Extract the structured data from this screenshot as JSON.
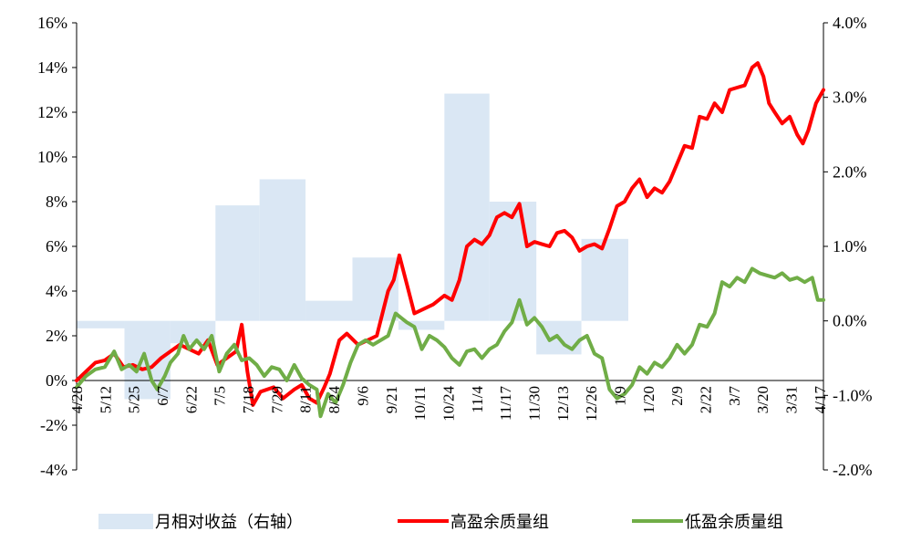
{
  "chart_data": {
    "type": "line",
    "title": "",
    "x_labels": [
      "4/28",
      "5/12",
      "5/25",
      "6/7",
      "6/22",
      "7/5",
      "7/18",
      "7/29",
      "8/11",
      "8/24",
      "9/6",
      "9/21",
      "10/11",
      "10/24",
      "11/4",
      "11/17",
      "11/30",
      "12/13",
      "12/26",
      "1/9",
      "1/20",
      "2/9",
      "2/22",
      "3/7",
      "3/20",
      "3/31",
      "4/17"
    ],
    "y_left": {
      "min": -4,
      "max": 16,
      "step": 2,
      "tick_labels": [
        "-4%",
        "-2%",
        "0%",
        "2%",
        "4%",
        "6%",
        "8%",
        "10%",
        "12%",
        "14%",
        "16%"
      ]
    },
    "y_right": {
      "min": -2.0,
      "max": 4.0,
      "step": 1.0,
      "tick_labels": [
        "-2.0%",
        "-1.0%",
        "0.0%",
        "1.0%",
        "2.0%",
        "3.0%",
        "4.0%"
      ]
    },
    "grid": false,
    "legend_position": "bottom",
    "series": [
      {
        "name": "月相对收益（右轴）",
        "axis": "right",
        "kind": "bar",
        "color": "#dae7f4",
        "months": [
          {
            "start": 0,
            "end": 2.55,
            "value": -0.1
          },
          {
            "start": 2.55,
            "end": 5.0,
            "value": -1.05
          },
          {
            "start": 5.0,
            "end": 7.4,
            "value": -0.3
          },
          {
            "start": 7.4,
            "end": 9.75,
            "value": 1.55
          },
          {
            "start": 9.75,
            "end": 12.2,
            "value": 1.9
          },
          {
            "start": 12.2,
            "end": 14.7,
            "value": 0.27
          },
          {
            "start": 14.7,
            "end": 17.15,
            "value": 0.85
          },
          {
            "start": 17.15,
            "end": 19.6,
            "value": -0.12
          },
          {
            "start": 19.6,
            "end": 22.0,
            "value": 3.05
          },
          {
            "start": 22.0,
            "end": 24.5,
            "value": 1.6
          },
          {
            "start": 24.5,
            "end": 26.9,
            "value": -0.45
          },
          {
            "start": 26.9,
            "end": 29.4,
            "value": 1.1
          }
        ]
      },
      {
        "name": "高盈余质量组",
        "axis": "left",
        "kind": "line",
        "color": "#ff0000",
        "points": [
          [
            0,
            0
          ],
          [
            0.5,
            0.4
          ],
          [
            1,
            0.8
          ],
          [
            1.5,
            0.9
          ],
          [
            2,
            1.2
          ],
          [
            2.5,
            0.6
          ],
          [
            3,
            0.7
          ],
          [
            3.5,
            0.5
          ],
          [
            4,
            0.6
          ],
          [
            4.5,
            1.0
          ],
          [
            5,
            1.3
          ],
          [
            5.5,
            1.6
          ],
          [
            6,
            1.4
          ],
          [
            6.5,
            1.2
          ],
          [
            7,
            1.8
          ],
          [
            7.5,
            0.7
          ],
          [
            8,
            1.0
          ],
          [
            8.5,
            1.3
          ],
          [
            8.8,
            2.5
          ],
          [
            9.1,
            0.4
          ],
          [
            9.4,
            -1.1
          ],
          [
            9.8,
            -0.5
          ],
          [
            10.5,
            -0.3
          ],
          [
            11,
            -0.8
          ],
          [
            11.6,
            -0.4
          ],
          [
            12,
            -0.2
          ],
          [
            12.4,
            -0.8
          ],
          [
            12.8,
            -1.0
          ],
          [
            13.2,
            -0.3
          ],
          [
            13.5,
            0.3
          ],
          [
            14,
            1.8
          ],
          [
            14.4,
            2.1
          ],
          [
            15,
            1.6
          ],
          [
            15.5,
            1.8
          ],
          [
            16,
            2.0
          ],
          [
            16.3,
            3.0
          ],
          [
            16.6,
            4.0
          ],
          [
            16.9,
            4.5
          ],
          [
            17.2,
            5.6
          ],
          [
            17.6,
            4.3
          ],
          [
            18,
            3.0
          ],
          [
            18.5,
            3.2
          ],
          [
            19,
            3.4
          ],
          [
            19.6,
            3.8
          ],
          [
            20,
            3.6
          ],
          [
            20.4,
            4.5
          ],
          [
            20.8,
            6.0
          ],
          [
            21.2,
            6.3
          ],
          [
            21.6,
            6.1
          ],
          [
            22,
            6.5
          ],
          [
            22.4,
            7.3
          ],
          [
            22.8,
            7.5
          ],
          [
            23.2,
            7.3
          ],
          [
            23.6,
            7.9
          ],
          [
            24,
            6.0
          ],
          [
            24.4,
            6.2
          ],
          [
            24.8,
            6.1
          ],
          [
            25.2,
            6.0
          ],
          [
            25.6,
            6.6
          ],
          [
            26,
            6.7
          ],
          [
            26.4,
            6.4
          ],
          [
            26.8,
            5.8
          ],
          [
            27.2,
            6.0
          ],
          [
            27.6,
            6.1
          ],
          [
            28,
            5.9
          ],
          [
            28.4,
            6.8
          ],
          [
            28.8,
            7.8
          ],
          [
            29.2,
            8.0
          ],
          [
            29.6,
            8.6
          ],
          [
            30,
            9.0
          ],
          [
            30.4,
            8.2
          ],
          [
            30.8,
            8.6
          ],
          [
            31.2,
            8.4
          ],
          [
            31.6,
            8.9
          ],
          [
            32,
            9.7
          ],
          [
            32.4,
            10.5
          ],
          [
            32.8,
            10.4
          ],
          [
            33.2,
            11.8
          ],
          [
            33.6,
            11.7
          ],
          [
            34,
            12.4
          ],
          [
            34.4,
            12.0
          ],
          [
            34.8,
            13.0
          ],
          [
            35.2,
            13.1
          ],
          [
            35.6,
            13.2
          ],
          [
            36,
            14.0
          ],
          [
            36.3,
            14.2
          ],
          [
            36.6,
            13.6
          ],
          [
            36.9,
            12.4
          ],
          [
            37.2,
            12.0
          ],
          [
            37.6,
            11.5
          ],
          [
            38,
            11.8
          ],
          [
            38.4,
            11.0
          ],
          [
            38.7,
            10.6
          ],
          [
            39,
            11.2
          ],
          [
            39.4,
            12.4
          ],
          [
            39.8,
            13.0
          ]
        ]
      },
      {
        "name": "低盈余质量组",
        "axis": "left",
        "kind": "line",
        "color": "#70ad47",
        "points": [
          [
            0,
            -0.3
          ],
          [
            0.5,
            0.2
          ],
          [
            1,
            0.5
          ],
          [
            1.5,
            0.6
          ],
          [
            2,
            1.3
          ],
          [
            2.4,
            0.5
          ],
          [
            2.8,
            0.7
          ],
          [
            3.2,
            0.4
          ],
          [
            3.6,
            1.2
          ],
          [
            4,
            0.0
          ],
          [
            4.3,
            -0.4
          ],
          [
            4.7,
            0.2
          ],
          [
            5,
            0.8
          ],
          [
            5.4,
            1.2
          ],
          [
            5.7,
            2.0
          ],
          [
            6,
            1.4
          ],
          [
            6.4,
            1.8
          ],
          [
            6.8,
            1.4
          ],
          [
            7.2,
            2.0
          ],
          [
            7.6,
            0.4
          ],
          [
            8,
            1.2
          ],
          [
            8.4,
            1.6
          ],
          [
            8.8,
            0.9
          ],
          [
            9.2,
            1.0
          ],
          [
            9.6,
            0.7
          ],
          [
            10,
            0.2
          ],
          [
            10.4,
            0.6
          ],
          [
            10.8,
            0.5
          ],
          [
            11.2,
            0.0
          ],
          [
            11.6,
            0.7
          ],
          [
            12,
            0.1
          ],
          [
            12.4,
            -0.2
          ],
          [
            12.8,
            -0.4
          ],
          [
            13,
            -1.6
          ],
          [
            13.4,
            -0.6
          ],
          [
            13.8,
            -1.0
          ],
          [
            14.2,
            -0.2
          ],
          [
            14.6,
            0.8
          ],
          [
            15,
            1.6
          ],
          [
            15.4,
            1.8
          ],
          [
            15.8,
            1.6
          ],
          [
            16.2,
            1.8
          ],
          [
            16.6,
            2.0
          ],
          [
            17,
            3.0
          ],
          [
            17.3,
            2.8
          ],
          [
            17.6,
            2.6
          ],
          [
            18,
            2.4
          ],
          [
            18.4,
            1.4
          ],
          [
            18.8,
            2.0
          ],
          [
            19.2,
            1.8
          ],
          [
            19.6,
            1.5
          ],
          [
            20,
            1.0
          ],
          [
            20.4,
            0.7
          ],
          [
            20.8,
            1.3
          ],
          [
            21.2,
            1.4
          ],
          [
            21.6,
            1.0
          ],
          [
            22,
            1.4
          ],
          [
            22.4,
            1.6
          ],
          [
            22.8,
            2.2
          ],
          [
            23.2,
            2.6
          ],
          [
            23.6,
            3.6
          ],
          [
            24,
            2.5
          ],
          [
            24.4,
            2.8
          ],
          [
            24.8,
            2.4
          ],
          [
            25.2,
            1.8
          ],
          [
            25.6,
            2.0
          ],
          [
            26,
            1.6
          ],
          [
            26.4,
            1.4
          ],
          [
            26.8,
            1.8
          ],
          [
            27.2,
            2.0
          ],
          [
            27.6,
            1.2
          ],
          [
            28,
            1.0
          ],
          [
            28.4,
            -0.4
          ],
          [
            28.8,
            -0.8
          ],
          [
            29.2,
            -0.6
          ],
          [
            29.6,
            -0.2
          ],
          [
            30,
            0.6
          ],
          [
            30.4,
            0.3
          ],
          [
            30.8,
            0.8
          ],
          [
            31.2,
            0.6
          ],
          [
            31.6,
            1.0
          ],
          [
            32,
            1.6
          ],
          [
            32.4,
            1.2
          ],
          [
            32.8,
            1.6
          ],
          [
            33.2,
            2.5
          ],
          [
            33.6,
            2.4
          ],
          [
            34,
            3.0
          ],
          [
            34.4,
            4.4
          ],
          [
            34.8,
            4.2
          ],
          [
            35.2,
            4.6
          ],
          [
            35.6,
            4.4
          ],
          [
            36,
            5.0
          ],
          [
            36.4,
            4.8
          ],
          [
            36.8,
            4.7
          ],
          [
            37.2,
            4.6
          ],
          [
            37.6,
            4.8
          ],
          [
            38,
            4.5
          ],
          [
            38.4,
            4.6
          ],
          [
            38.8,
            4.4
          ],
          [
            39.2,
            4.6
          ],
          [
            39.5,
            3.6
          ],
          [
            39.8,
            3.6
          ]
        ]
      }
    ]
  },
  "legend": {
    "items": [
      {
        "label": "月相对收益（右轴）",
        "color": "#dae7f4"
      },
      {
        "label": "高盈余质量组",
        "color": "#ff0000"
      },
      {
        "label": "低盈余质量组",
        "color": "#70ad47"
      }
    ]
  }
}
